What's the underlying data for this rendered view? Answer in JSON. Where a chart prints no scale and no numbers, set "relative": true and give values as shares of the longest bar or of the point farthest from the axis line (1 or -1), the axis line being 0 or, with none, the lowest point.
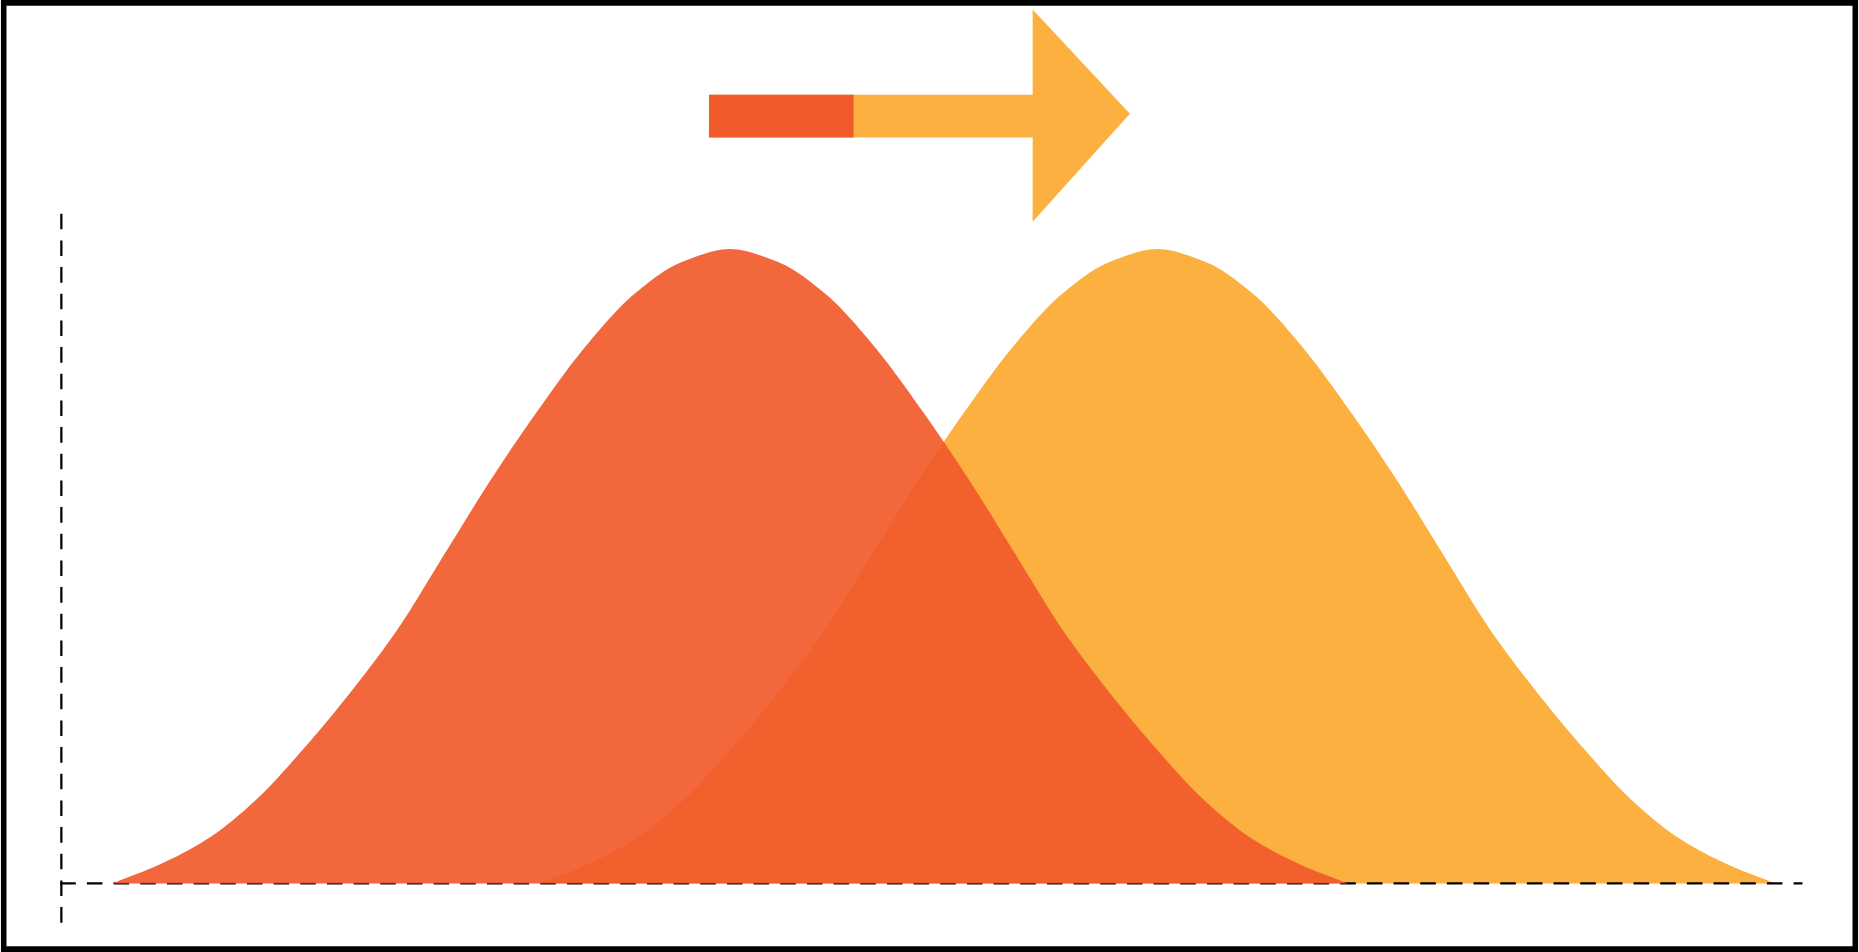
{
  "chart_data": {
    "type": "area",
    "relative": true,
    "categories": [
      null,
      null,
      null,
      null,
      null,
      null,
      null,
      null,
      null,
      null,
      null,
      null,
      null,
      null,
      null,
      null,
      null,
      null,
      null,
      null,
      null,
      null,
      null,
      null,
      null,
      null,
      null,
      null,
      null,
      null,
      null,
      null,
      null,
      null,
      null,
      null
    ],
    "series": [
      {
        "color": "#f15a2b",
        "values": [
          0.0,
          0.03,
          0.07,
          0.13,
          0.21,
          0.3,
          0.4,
          0.52,
          0.64,
          0.75,
          0.85,
          0.93,
          0.98,
          1,
          0.98,
          0.93,
          0.85,
          0.75,
          0.64,
          0.52,
          0.4,
          0.3,
          0.21,
          0.13,
          0.07,
          0.03,
          0.0,
          null,
          null,
          null,
          null,
          null,
          null,
          null,
          null,
          null
        ]
      },
      {
        "color": "#fbb040",
        "values": [
          null,
          null,
          null,
          null,
          null,
          null,
          null,
          null,
          null,
          0.0,
          0.03,
          0.07,
          0.13,
          0.21,
          0.3,
          0.4,
          0.52,
          0.64,
          0.75,
          0.85,
          0.93,
          0.98,
          1,
          0.98,
          0.93,
          0.85,
          0.75,
          0.64,
          0.52,
          0.4,
          0.3,
          0.21,
          0.13,
          0.07,
          0.03,
          0.0
        ]
      }
    ],
    "line_style": "dashed",
    "grid": false,
    "legend": false
  }
}
